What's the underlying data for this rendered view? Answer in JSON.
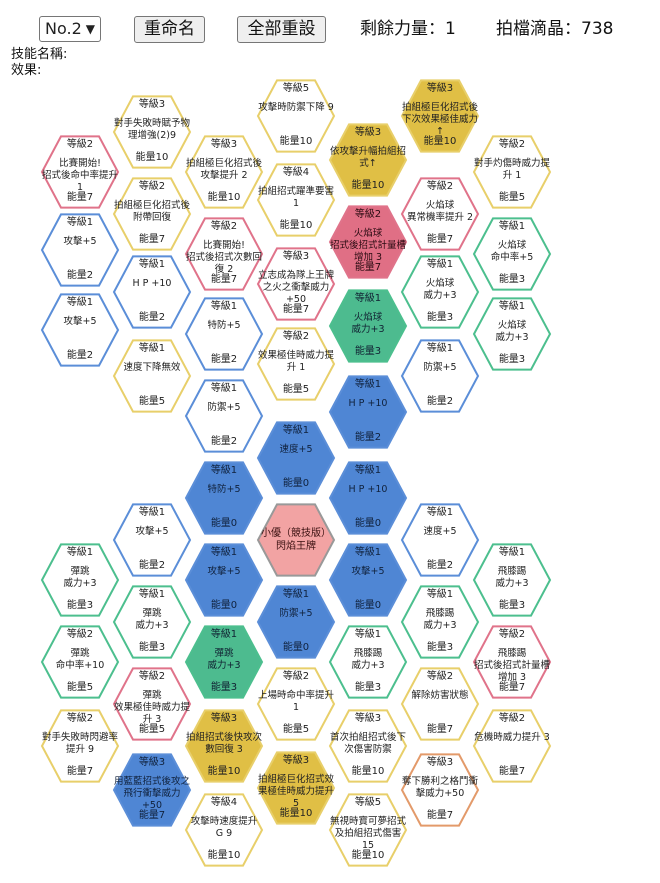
{
  "header": {
    "preset_value": "No.2",
    "rename_label": "重命名",
    "reset_all_label": "全部重設",
    "power_label": "剩餘力量：1",
    "crystal_label": "拍檔滴晶：738"
  },
  "skill": {
    "name_label": "技能名稱:",
    "effect_label": "效果:"
  },
  "colors": {
    "gold": "#e0bf45",
    "blue": "#4f86d4",
    "green": "#4dbb8f",
    "red": "#e06f85",
    "pink": "#f2a3a3",
    "orange": "#e79a68",
    "border_gold": "#e8cf6a",
    "border_blue": "#5b8ed8",
    "border_green": "#4cbf8e",
    "border_red": "#e0738a",
    "border_orange": "#e39a6a",
    "border_gray": "#999999"
  },
  "nodes": [
    {
      "id": "n1",
      "level": "等級3",
      "text": "對手失敗時賦予物理增強(2)9",
      "cost": "能量10",
      "style": "gold-outline"
    },
    {
      "id": "n2",
      "level": "等級5",
      "text": "攻擊時防禦下降 9",
      "cost": "能量10",
      "style": "gold-outline"
    },
    {
      "id": "n3",
      "level": "等級3",
      "text": "拍組極巨化招式後下次效果極佳威力↑",
      "cost": "能量10",
      "style": "gold-fill"
    },
    {
      "id": "n4",
      "level": "等級2",
      "text": "比賽開始!\n招式後命中率提升 1",
      "cost": "能量7",
      "style": "red-outline"
    },
    {
      "id": "n5",
      "level": "等級3",
      "text": "拍組極巨化招式後攻擊提升 2",
      "cost": "能量10",
      "style": "gold-outline"
    },
    {
      "id": "n6",
      "level": "等級3",
      "text": "依攻擊升幅拍組招式↑",
      "cost": "能量10",
      "style": "gold-fill"
    },
    {
      "id": "n7",
      "level": "等級2",
      "text": "對手灼傷時威力提升 1",
      "cost": "能量5",
      "style": "gold-outline"
    },
    {
      "id": "n8",
      "level": "等級2",
      "text": "拍組極巨化招式後附帶回復",
      "cost": "能量7",
      "style": "gold-outline"
    },
    {
      "id": "n9",
      "level": "等級4",
      "text": "拍組招式躍準要害 1",
      "cost": "能量10",
      "style": "gold-outline"
    },
    {
      "id": "n10",
      "level": "等級2",
      "text": "火焰球\n異常機率提升 2",
      "cost": "能量7",
      "style": "red-outline"
    },
    {
      "id": "n11",
      "level": "等級1",
      "text": "攻擊+5",
      "cost": "能量2",
      "style": "blue-outline"
    },
    {
      "id": "n12",
      "level": "等級2",
      "text": "比賽開始!\n招式後招式次數回復 2",
      "cost": "能量7",
      "style": "red-outline"
    },
    {
      "id": "n13",
      "level": "等級2",
      "text": "火焰球\n招式後招式計量槽增加 3",
      "cost": "能量7",
      "style": "red-fill"
    },
    {
      "id": "n14",
      "level": "等級1",
      "text": "火焰球\n命中率+5",
      "cost": "能量3",
      "style": "green-outline"
    },
    {
      "id": "n15",
      "level": "等級1",
      "text": "H P +10",
      "cost": "能量2",
      "style": "blue-outline"
    },
    {
      "id": "n16",
      "level": "等級3",
      "text": "立志成為隊上王牌之火之衝擊威力+50",
      "cost": "能量7",
      "style": "red-outline"
    },
    {
      "id": "n17",
      "level": "等級1",
      "text": "火焰球\n威力+3",
      "cost": "能量3",
      "style": "green-outline"
    },
    {
      "id": "n18",
      "level": "等級1",
      "text": "攻擊+5",
      "cost": "能量2",
      "style": "blue-outline"
    },
    {
      "id": "n19",
      "level": "等級1",
      "text": "特防+5",
      "cost": "能量2",
      "style": "blue-outline"
    },
    {
      "id": "n20",
      "level": "等級1",
      "text": "火焰球\n威力+3",
      "cost": "能量3",
      "style": "green-fill"
    },
    {
      "id": "n21",
      "level": "等級1",
      "text": "火焰球\n威力+3",
      "cost": "能量3",
      "style": "green-outline"
    },
    {
      "id": "n22",
      "level": "等級1",
      "text": "速度下降無效",
      "cost": "能量5",
      "style": "gold-outline"
    },
    {
      "id": "n23",
      "level": "等級2",
      "text": "效果極佳時威力提升 1",
      "cost": "能量5",
      "style": "gold-outline"
    },
    {
      "id": "n24",
      "level": "等級1",
      "text": "防禦+5",
      "cost": "能量2",
      "style": "blue-outline"
    },
    {
      "id": "n25",
      "level": "等級1",
      "text": "防禦+5",
      "cost": "能量2",
      "style": "blue-outline"
    },
    {
      "id": "n26",
      "level": "等級1",
      "text": "H P +10",
      "cost": "能量2",
      "style": "blue-fill"
    },
    {
      "id": "n27",
      "level": "等級1",
      "text": "速度+5",
      "cost": "能量0",
      "style": "blue-fill"
    },
    {
      "id": "n28",
      "level": "等級1",
      "text": "特防+5",
      "cost": "能量0",
      "style": "blue-fill"
    },
    {
      "id": "n29",
      "level": "等級1",
      "text": "H P +10",
      "cost": "能量0",
      "style": "blue-fill"
    },
    {
      "id": "n30",
      "level": "等級1",
      "text": "攻擊+5",
      "cost": "能量2",
      "style": "blue-outline"
    },
    {
      "id": "n31",
      "level": "",
      "text": "小優（競技版）\n閃焰王牌",
      "cost": "",
      "style": "center"
    },
    {
      "id": "n32",
      "level": "等級1",
      "text": "速度+5",
      "cost": "能量2",
      "style": "blue-outline"
    },
    {
      "id": "n33",
      "level": "等級1",
      "text": "彈跳\n威力+3",
      "cost": "能量3",
      "style": "green-outline"
    },
    {
      "id": "n34",
      "level": "等級1",
      "text": "攻擊+5",
      "cost": "能量0",
      "style": "blue-fill"
    },
    {
      "id": "n35",
      "level": "等級1",
      "text": "攻擊+5",
      "cost": "能量0",
      "style": "blue-fill"
    },
    {
      "id": "n36",
      "level": "等級1",
      "text": "飛膝踢\n威力+3",
      "cost": "能量3",
      "style": "green-outline"
    },
    {
      "id": "n37",
      "level": "等級1",
      "text": "彈跳\n威力+3",
      "cost": "能量3",
      "style": "green-outline"
    },
    {
      "id": "n38",
      "level": "等級1",
      "text": "防禦+5",
      "cost": "能量0",
      "style": "blue-fill"
    },
    {
      "id": "n39",
      "level": "等級1",
      "text": "飛膝踢\n威力+3",
      "cost": "能量3",
      "style": "green-outline"
    },
    {
      "id": "n40",
      "level": "等級2",
      "text": "彈跳\n命中率+10",
      "cost": "能量5",
      "style": "green-outline"
    },
    {
      "id": "n41",
      "level": "等級1",
      "text": "彈跳\n威力+3",
      "cost": "能量3",
      "style": "green-fill"
    },
    {
      "id": "n42",
      "level": "等級1",
      "text": "飛膝踢\n威力+3",
      "cost": "能量3",
      "style": "green-outline"
    },
    {
      "id": "n43",
      "level": "等級2",
      "text": "飛膝踢\n招式後招式計量槽增加 3",
      "cost": "能量7",
      "style": "red-outline"
    },
    {
      "id": "n44",
      "level": "等級2",
      "text": "彈跳\n效果極佳時威力提升 3",
      "cost": "能量5",
      "style": "red-outline"
    },
    {
      "id": "n45",
      "level": "等級2",
      "text": "上場時命中率提升 1",
      "cost": "能量5",
      "style": "gold-outline"
    },
    {
      "id": "n46",
      "level": "等級2",
      "text": "解除妨害狀態",
      "cost": "能量7",
      "style": "gold-outline"
    },
    {
      "id": "n47",
      "level": "等級2",
      "text": "對手失敗時閃避率提升 9",
      "cost": "能量7",
      "style": "gold-outline"
    },
    {
      "id": "n48",
      "level": "等級3",
      "text": "拍組招式後快攻次數回復 3",
      "cost": "能量10",
      "style": "gold-fill"
    },
    {
      "id": "n49",
      "level": "等級3",
      "text": "首次拍組招式後下次傷害防禦",
      "cost": "能量10",
      "style": "gold-outline"
    },
    {
      "id": "n50",
      "level": "等級2",
      "text": "危機時威力提升 3",
      "cost": "能量7",
      "style": "gold-outline"
    },
    {
      "id": "n51",
      "level": "等級3",
      "text": "用藍藍招式後攻之飛行衝擊威力+50",
      "cost": "能量7",
      "style": "blue-fill"
    },
    {
      "id": "n52",
      "level": "等級3",
      "text": "拍組極巨化招式效果極佳時威力提升 5",
      "cost": "能量10",
      "style": "gold-fill"
    },
    {
      "id": "n53",
      "level": "等級3",
      "text": "奪下勝利之格鬥衝擊威力+50",
      "cost": "能量7",
      "style": "orange-outline"
    },
    {
      "id": "n54",
      "level": "等級4",
      "text": "攻擊時速度提升 G 9",
      "cost": "能量10",
      "style": "gold-outline"
    },
    {
      "id": "n55",
      "level": "等級5",
      "text": "無視時寶可夢招式及拍組招式傷害 15",
      "cost": "能量10",
      "style": "gold-outline"
    }
  ]
}
